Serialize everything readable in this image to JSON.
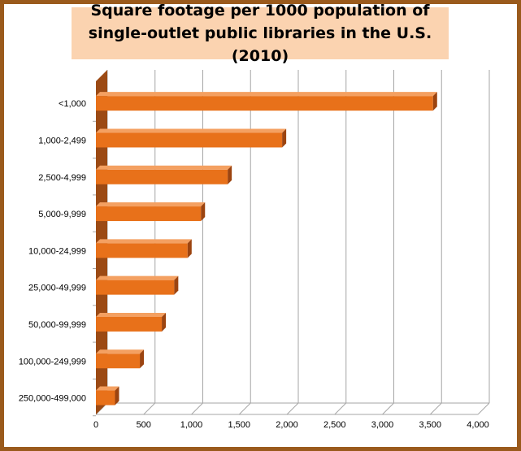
{
  "chart_data": {
    "type": "bar",
    "orientation": "horizontal",
    "title": "Square footage per 1000 population of single-outlet public libraries in the U.S. (2010)",
    "categories": [
      "<1,000",
      "1,000-2,499",
      "2,500-4,999",
      "5,000-9,999",
      "10,000-24,999",
      "25,000-49,999",
      "50,000-99,999",
      "100,000-249,999",
      "250,000-499,000"
    ],
    "values": [
      3530,
      1950,
      1380,
      1100,
      960,
      820,
      690,
      460,
      200
    ],
    "xticks": [
      "0",
      "500",
      "1,000",
      "1,500",
      "2,000",
      "2,500",
      "3,000",
      "3,500",
      "4,000"
    ],
    "xlim": [
      0,
      4000
    ],
    "grid": true,
    "legend": "none",
    "colors": {
      "bar_face": "#e8711a",
      "bar_top": "#f4a061",
      "bar_side": "#9c4410",
      "wall": "#9c4a14",
      "title_bg": "#fbd3b0",
      "frame": "#9a5a1c"
    }
  }
}
